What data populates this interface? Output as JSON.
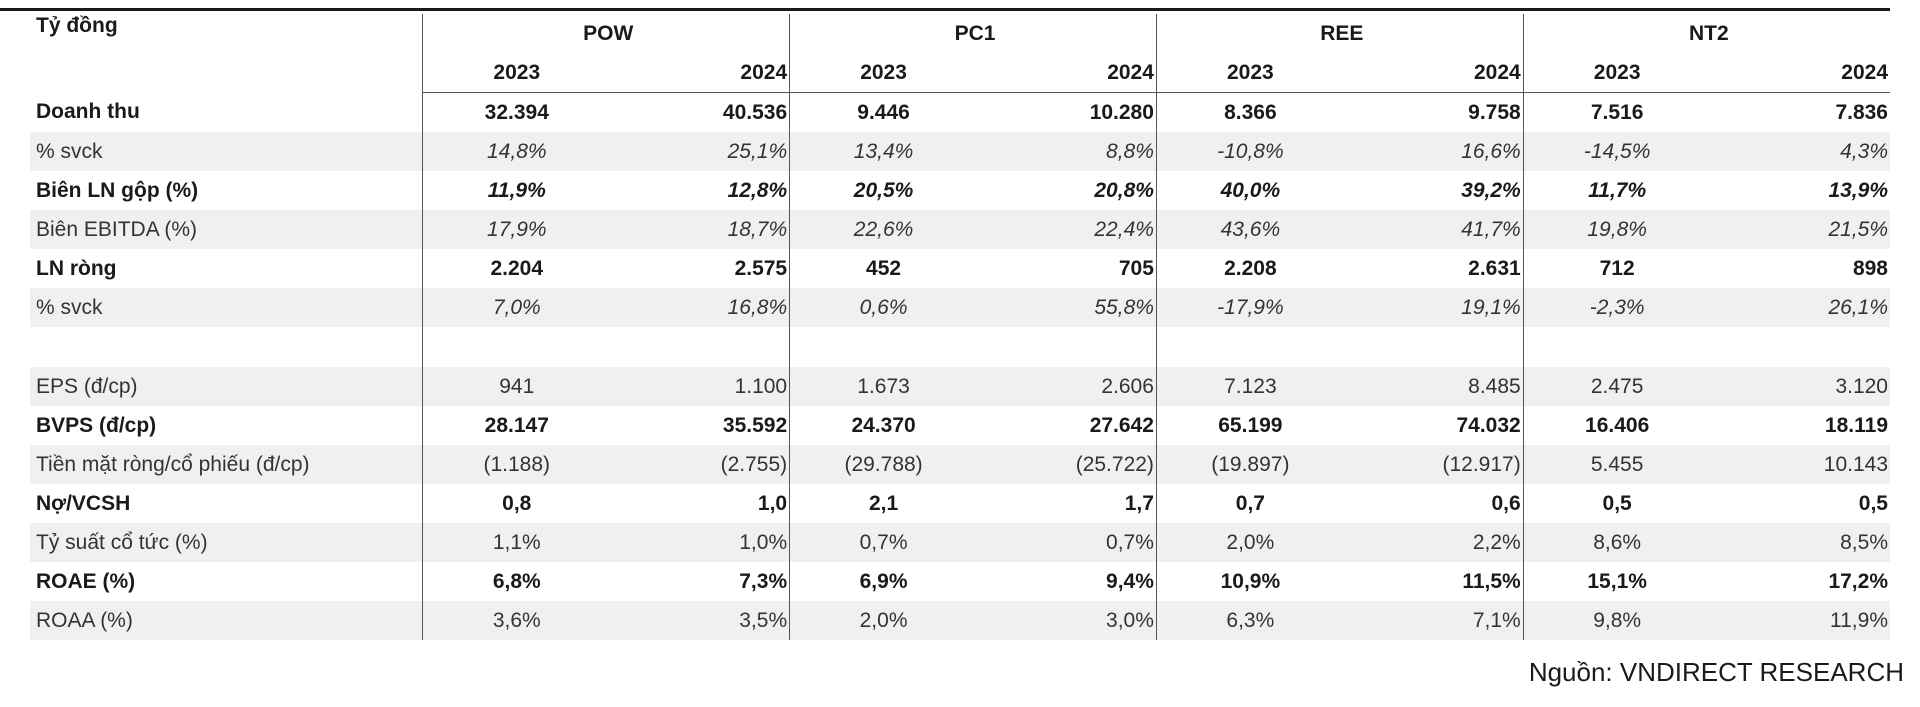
{
  "table": {
    "corner_label": "Tỷ đồng",
    "companies": [
      "POW",
      "PC1",
      "REE",
      "NT2"
    ],
    "years": [
      "2023",
      "2024",
      "2023",
      "2024",
      "2023",
      "2024",
      "2023",
      "2024"
    ],
    "rows": [
      {
        "label": "Doanh thu",
        "style": "bold",
        "shade": false,
        "values": [
          "32.394",
          "40.536",
          "9.446",
          "10.280",
          "8.366",
          "9.758",
          "7.516",
          "7.836"
        ]
      },
      {
        "label": "% svck",
        "style": "italic",
        "shade": true,
        "values": [
          "14,8%",
          "25,1%",
          "13,4%",
          "8,8%",
          "-10,8%",
          "16,6%",
          "-14,5%",
          "4,3%"
        ]
      },
      {
        "label": "Biên LN gộp (%)",
        "style": "bold-italic",
        "shade": false,
        "values": [
          "11,9%",
          "12,8%",
          "20,5%",
          "20,8%",
          "40,0%",
          "39,2%",
          "11,7%",
          "13,9%"
        ]
      },
      {
        "label": "Biên EBITDA (%)",
        "style": "italic",
        "shade": true,
        "values": [
          "17,9%",
          "18,7%",
          "22,6%",
          "22,4%",
          "43,6%",
          "41,7%",
          "19,8%",
          "21,5%"
        ]
      },
      {
        "label": "LN ròng",
        "style": "bold",
        "shade": false,
        "values": [
          "2.204",
          "2.575",
          "452",
          "705",
          "2.208",
          "2.631",
          "712",
          "898"
        ]
      },
      {
        "label": "% svck",
        "style": "italic",
        "shade": true,
        "values": [
          "7,0%",
          "16,8%",
          "0,6%",
          "55,8%",
          "-17,9%",
          "19,1%",
          "-2,3%",
          "26,1%"
        ]
      },
      {
        "label": "",
        "style": "spacer",
        "shade": false,
        "values": [
          "",
          "",
          "",
          "",
          "",
          "",
          "",
          ""
        ]
      },
      {
        "label": "EPS (đ/cp)",
        "style": "regular",
        "shade": true,
        "values": [
          "941",
          "1.100",
          "1.673",
          "2.606",
          "7.123",
          "8.485",
          "2.475",
          "3.120"
        ]
      },
      {
        "label": "BVPS (đ/cp)",
        "style": "bold",
        "shade": false,
        "values": [
          "28.147",
          "35.592",
          "24.370",
          "27.642",
          "65.199",
          "74.032",
          "16.406",
          "18.119"
        ]
      },
      {
        "label": "Tiền mặt ròng/cổ phiếu (đ/cp)",
        "style": "regular",
        "shade": true,
        "values": [
          "(1.188)",
          "(2.755)",
          "(29.788)",
          "(25.722)",
          "(19.897)",
          "(12.917)",
          "5.455",
          "10.143"
        ]
      },
      {
        "label": "Nợ/VCSH",
        "style": "bold",
        "shade": false,
        "values": [
          "0,8",
          "1,0",
          "2,1",
          "1,7",
          "0,7",
          "0,6",
          "0,5",
          "0,5"
        ]
      },
      {
        "label": "Tỷ suất cổ tức (%)",
        "style": "regular",
        "shade": true,
        "values": [
          "1,1%",
          "1,0%",
          "0,7%",
          "0,7%",
          "2,0%",
          "2,2%",
          "8,6%",
          "8,5%"
        ]
      },
      {
        "label": "ROAE (%)",
        "style": "bold",
        "shade": false,
        "values": [
          "6,8%",
          "7,3%",
          "6,9%",
          "9,4%",
          "10,9%",
          "11,5%",
          "15,1%",
          "17,2%"
        ]
      },
      {
        "label": "ROAA (%)",
        "style": "regular",
        "shade": true,
        "values": [
          "3,6%",
          "3,5%",
          "2,0%",
          "3,0%",
          "6,3%",
          "7,1%",
          "9,8%",
          "11,9%"
        ]
      }
    ]
  },
  "source_note": "Nguồn: VNDIRECT RESEARCH"
}
